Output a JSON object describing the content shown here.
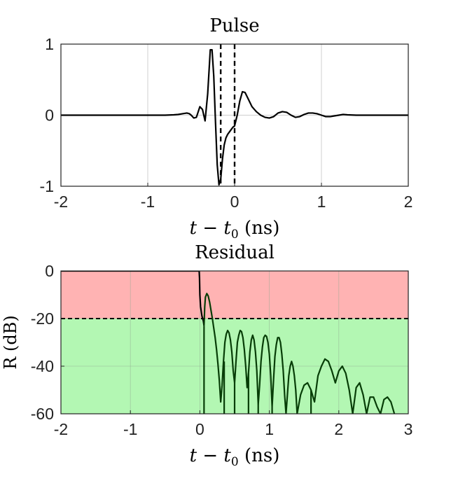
{
  "chart_data": [
    {
      "type": "line",
      "title": "Pulse",
      "xlabel": "t − t0 (ns)",
      "xlabel_parts": {
        "pre": "t − t",
        "sub": "0",
        "post": " (ns)"
      },
      "ylabel": "",
      "xlim": [
        -2,
        2
      ],
      "ylim": [
        -1,
        1
      ],
      "xticks": [
        -2,
        -1,
        0,
        1,
        2
      ],
      "xtick_labels": [
        "-2",
        "-1",
        "0",
        "1",
        "2"
      ],
      "yticks": [
        -1,
        0,
        1
      ],
      "ytick_labels": [
        "-1",
        "0",
        "1"
      ],
      "grid": true,
      "series": [
        {
          "color": "#000000",
          "x": [
            -2.0,
            -1.0,
            -0.8,
            -0.7,
            -0.65,
            -0.6,
            -0.55,
            -0.52,
            -0.5,
            -0.47,
            -0.44,
            -0.4,
            -0.37,
            -0.34,
            -0.31,
            -0.28,
            -0.26,
            -0.24,
            -0.22,
            -0.2,
            -0.18,
            -0.16,
            -0.14,
            -0.12,
            -0.1,
            -0.08,
            -0.05,
            -0.02,
            0.0,
            0.03,
            0.06,
            0.09,
            0.12,
            0.16,
            0.2,
            0.25,
            0.3,
            0.35,
            0.4,
            0.45,
            0.5,
            0.55,
            0.6,
            0.65,
            0.7,
            0.75,
            0.8,
            0.85,
            0.9,
            0.95,
            1.0,
            1.05,
            1.1,
            1.15,
            1.2,
            1.25,
            1.3,
            1.4,
            1.5,
            1.6,
            1.7,
            1.8,
            1.9,
            2.0
          ],
          "y": [
            0.0,
            0.0,
            0.0,
            0.005,
            0.01,
            0.02,
            0.03,
            0.02,
            0.0,
            -0.04,
            -0.03,
            0.12,
            0.08,
            -0.08,
            0.3,
            0.92,
            0.92,
            0.55,
            -0.1,
            -0.7,
            -0.98,
            -0.9,
            -0.62,
            -0.42,
            -0.32,
            -0.27,
            -0.22,
            -0.17,
            -0.15,
            0.0,
            0.2,
            0.33,
            0.32,
            0.22,
            0.12,
            0.05,
            0.0,
            -0.03,
            -0.04,
            -0.02,
            0.03,
            0.05,
            0.04,
            0.0,
            -0.03,
            -0.02,
            0.01,
            0.03,
            0.03,
            0.02,
            0.0,
            -0.02,
            -0.02,
            -0.01,
            0.0,
            0.01,
            0.005,
            0.0,
            0.0,
            0.0,
            0.0,
            0.0,
            0.0,
            0.0
          ]
        }
      ],
      "vlines": [
        {
          "x": -0.16,
          "style": "dashed",
          "color": "#000000"
        },
        {
          "x": 0.0,
          "style": "dashed",
          "color": "#000000"
        }
      ]
    },
    {
      "type": "line",
      "title": "Residual",
      "xlabel": "t − t0 (ns)",
      "xlabel_parts": {
        "pre": "t − t",
        "sub": "0",
        "post": " (ns)"
      },
      "ylabel": "R (dB)",
      "xlim": [
        -2,
        3
      ],
      "ylim": [
        -60,
        0
      ],
      "xticks": [
        -2,
        -1,
        0,
        1,
        2,
        3
      ],
      "xtick_labels": [
        "-2",
        "-1",
        "0",
        "1",
        "2",
        "3"
      ],
      "yticks": [
        0,
        -20,
        -40,
        -60
      ],
      "ytick_labels": [
        "0",
        "-20",
        "-40",
        "-60"
      ],
      "grid": true,
      "regions": [
        {
          "y_from": 0,
          "y_to": -20,
          "color": "#ffb3b3"
        },
        {
          "y_from": -20,
          "y_to": -60,
          "color": "#b3f7b3"
        }
      ],
      "hlines": [
        {
          "y": -20,
          "style": "dashed",
          "color": "#000000"
        }
      ],
      "series": [
        {
          "color": "#000000",
          "x": [
            -2.0,
            -0.01,
            -0.005,
            0.0,
            0.01,
            0.03,
            0.05,
            0.06
          ],
          "y": [
            0.0,
            0.0,
            -3.0,
            -10.0,
            -15.0,
            -19.0,
            -21.0,
            -23.0
          ]
        },
        {
          "color": "#073d07",
          "x": [
            0.06,
            0.07,
            0.08,
            0.1,
            0.12,
            0.14,
            0.16,
            0.18,
            0.2,
            0.22,
            0.24,
            0.26,
            0.28,
            0.3,
            0.32,
            0.34,
            0.36,
            0.38,
            0.4,
            0.42,
            0.44,
            0.46,
            0.48,
            0.5,
            0.52,
            0.54,
            0.56,
            0.58,
            0.6,
            0.62,
            0.64,
            0.66,
            0.68,
            0.7,
            0.72,
            0.74,
            0.76,
            0.78,
            0.8,
            0.82,
            0.84,
            0.86,
            0.88,
            0.9,
            0.92,
            0.94,
            0.96,
            0.98,
            1.0,
            1.02,
            1.04,
            1.06,
            1.08,
            1.1,
            1.12,
            1.14,
            1.16,
            1.18,
            1.2,
            1.22,
            1.24,
            1.26,
            1.28,
            1.3,
            1.32,
            1.34,
            1.36,
            1.38,
            1.4,
            1.45,
            1.5,
            1.55,
            1.6,
            1.65,
            1.7,
            1.75,
            1.8,
            1.85,
            1.9,
            1.95,
            2.0,
            2.05,
            2.1,
            2.15,
            2.2,
            2.25,
            2.3,
            2.35,
            2.4,
            2.45,
            2.5,
            2.55,
            2.6,
            2.65,
            2.7,
            2.75,
            2.8
          ],
          "y": [
            -23.0,
            -15.0,
            -11.0,
            -9.5,
            -10.5,
            -13.0,
            -16.5,
            -20.0,
            -24.0,
            -28.0,
            -33.0,
            -39.0,
            -46.0,
            -55.0,
            -48.0,
            -38.0,
            -30.0,
            -26.5,
            -25.0,
            -26.0,
            -29.0,
            -34.0,
            -42.0,
            -47.0,
            -38.0,
            -30.0,
            -27.0,
            -25.0,
            -25.5,
            -28.0,
            -33.0,
            -40.0,
            -49.0,
            -43.0,
            -34.0,
            -29.0,
            -27.0,
            -29.0,
            -34.0,
            -42.0,
            -56.0,
            -48.0,
            -38.0,
            -32.0,
            -28.0,
            -27.0,
            -27.5,
            -30.0,
            -35.0,
            -44.0,
            -57.0,
            -46.0,
            -36.0,
            -31.0,
            -28.0,
            -28.0,
            -30.0,
            -35.0,
            -42.0,
            -52.0,
            -60.0,
            -52.0,
            -44.0,
            -40.0,
            -38.0,
            -40.0,
            -44.0,
            -50.0,
            -60.0,
            -52.0,
            -48.0,
            -47.0,
            -50.0,
            -55.0,
            -44.0,
            -40.0,
            -37.0,
            -38.0,
            -42.0,
            -47.0,
            -42.0,
            -40.0,
            -43.0,
            -50.0,
            -60.0,
            -49.0,
            -47.0,
            -52.0,
            -60.0,
            -53.0,
            -53.0,
            -57.0,
            -60.0,
            -54.0,
            -53.0,
            -55.0,
            -60.0
          ],
          "dips_to_floor_at_x": [
            0.06,
            0.35,
            0.5,
            0.7,
            0.84,
            1.04,
            1.24,
            1.4,
            1.6,
            2.2,
            2.4,
            2.6
          ]
        }
      ]
    }
  ]
}
